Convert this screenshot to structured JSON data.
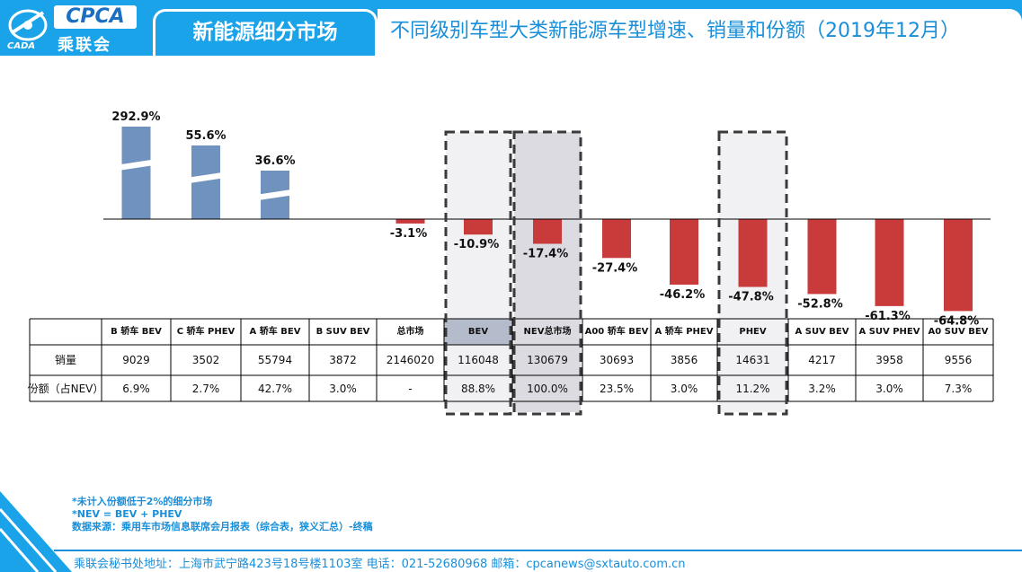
{
  "header": {
    "logo_text": "CPCA",
    "logo_cn": "乘联会",
    "logo_small": "CADA",
    "title": "新能源细分市场",
    "subtitle": "不同级别车型大类新能源车型增速、销量和份额（2019年12月）"
  },
  "colors": {
    "positive_bar": "#7092be",
    "negative_bar": "#c93a3a",
    "accent": "#1aa3e8",
    "highlight_cell": "#b4bccc"
  },
  "chart_data": {
    "type": "bar",
    "categories": [
      "B 轿车 BEV",
      "C 轿车 PHEV",
      "A 轿车 BEV",
      "B SUV BEV",
      "总市场",
      "BEV",
      "NEV总市场",
      "A00 轿车 BEV",
      "A 轿车 PHEV",
      "PHEV",
      "A SUV BEV",
      "A SUV PHEV",
      "A0 SUV BEV"
    ],
    "values": [
      292.9,
      55.6,
      36.6,
      null,
      -3.1,
      -10.9,
      -17.4,
      -27.4,
      -46.2,
      -47.8,
      -52.8,
      -61.3,
      -64.8
    ],
    "value_labels": [
      "292.9%",
      "55.6%",
      "36.6%",
      "",
      "-3.1%",
      "-10.9%",
      "-17.4%",
      "-27.4%",
      "-46.2%",
      "-47.8%",
      "-52.8%",
      "-61.3%",
      "-64.8%"
    ],
    "broken_axis_bars": [
      0,
      1,
      2
    ],
    "highlighted_columns": [
      5,
      6,
      9
    ],
    "title": "",
    "xlabel": "",
    "ylabel": ""
  },
  "table": {
    "rows": [
      {
        "label": "销量",
        "values": [
          "9029",
          "3502",
          "55794",
          "3872",
          "2146020",
          "116048",
          "130679",
          "30693",
          "3856",
          "14631",
          "4217",
          "3958",
          "9556"
        ]
      },
      {
        "label": "份额（占NEV）",
        "values": [
          "6.9%",
          "2.7%",
          "42.7%",
          "3.0%",
          "-",
          "88.8%",
          "100.0%",
          "23.5%",
          "3.0%",
          "11.2%",
          "3.2%",
          "3.0%",
          "7.3%"
        ]
      }
    ]
  },
  "notes": [
    "*未计入份额低于2%的细分市场",
    "*NEV = BEV + PHEV",
    "数据来源：乘用车市场信息联席会月报表（综合表，狭义汇总）-终稿"
  ],
  "footer": "乘联会秘书处地址：上海市武宁路423号18号楼1103室  电话：021-52680968   邮箱：cpcanews@sxtauto.com.cn"
}
